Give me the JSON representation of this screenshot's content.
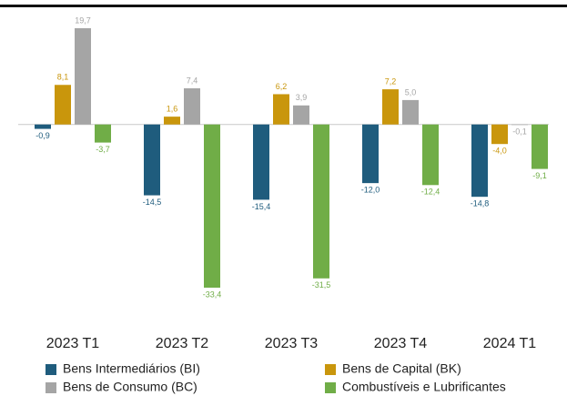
{
  "chart_data": {
    "type": "bar",
    "categories": [
      "2023 T1",
      "2023 T2",
      "2023 T3",
      "2023 T4",
      "2024 T1"
    ],
    "series": [
      {
        "name": "Bens Intermediários (BI)",
        "color": "#1f5c7d",
        "values": [
          -0.9,
          -14.5,
          -15.4,
          -12.0,
          -14.8
        ],
        "value_labels": [
          "-0,9",
          "-14,5",
          "-15,4",
          "-12,0",
          "-14,8"
        ]
      },
      {
        "name": "Bens de Capital (BK)",
        "color": "#c9960c",
        "values": [
          8.1,
          1.6,
          6.2,
          7.2,
          -4.0
        ],
        "value_labels": [
          "8,1",
          "1,6",
          "6,2",
          "7,2",
          "-4,0"
        ]
      },
      {
        "name": "Bens de Consumo (BC)",
        "color": "#a5a5a5",
        "values": [
          19.7,
          7.4,
          3.9,
          5.0,
          -0.1
        ],
        "value_labels": [
          "19,7",
          "7,4",
          "3,9",
          "5,0",
          "-0,1"
        ]
      },
      {
        "name": "Combustíveis e Lubrificantes",
        "color": "#70ad47",
        "values": [
          -3.7,
          -33.4,
          -31.5,
          -12.4,
          -9.1
        ],
        "value_labels": [
          "-3,7",
          "-33,4",
          "-31,5",
          "-12,4",
          "-9,1"
        ]
      }
    ]
  }
}
